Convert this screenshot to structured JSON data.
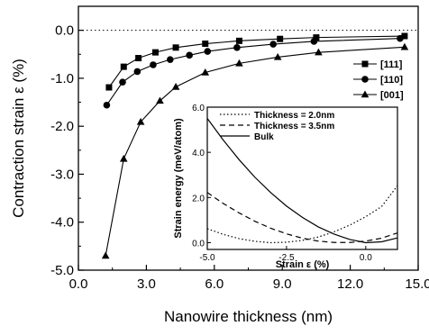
{
  "chart_data": [
    {
      "type": "line",
      "xlabel": "Nanowire thickness (nm)",
      "ylabel": "Contraction strain ε (%)",
      "xlim": [
        0.0,
        15.0
      ],
      "ylim": [
        -5.0,
        0.5
      ],
      "xticks": [
        0.0,
        3.0,
        6.0,
        9.0,
        12.0,
        15.0
      ],
      "xtick_labels": [
        "0.0",
        "3.0",
        "6.0",
        "9.0",
        "12.0",
        "15.0"
      ],
      "yticks": [
        0.0,
        -1.0,
        -2.0,
        -3.0,
        -4.0,
        -5.0
      ],
      "ytick_labels": [
        "0.0",
        "-1.0",
        "-2.0",
        "-3.0",
        "-4.0",
        "-5.0"
      ],
      "reference_line": {
        "y": 0.0,
        "style": "dotted"
      },
      "legend_position": "top-right",
      "series": [
        {
          "name": "[111]",
          "marker": "square",
          "x": [
            1.35,
            2.0,
            2.65,
            3.4,
            4.3,
            5.6,
            7.1,
            8.9,
            10.5,
            14.4
          ],
          "y": [
            -1.19,
            -0.76,
            -0.58,
            -0.46,
            -0.36,
            -0.28,
            -0.22,
            -0.18,
            -0.15,
            -0.12
          ]
        },
        {
          "name": "[110]",
          "marker": "circle",
          "x": [
            1.25,
            1.95,
            2.6,
            3.3,
            4.05,
            4.9,
            5.7,
            7.0,
            8.6,
            10.4,
            14.2
          ],
          "y": [
            -1.56,
            -1.08,
            -0.86,
            -0.72,
            -0.61,
            -0.52,
            -0.44,
            -0.36,
            -0.29,
            -0.23,
            -0.17
          ]
        },
        {
          "name": "[001]",
          "marker": "triangle",
          "x": [
            1.2,
            2.0,
            2.75,
            3.6,
            4.3,
            5.6,
            7.1,
            8.8,
            10.6,
            14.4
          ],
          "y": [
            -4.7,
            -2.68,
            -1.91,
            -1.47,
            -1.18,
            -0.88,
            -0.69,
            -0.56,
            -0.46,
            -0.35
          ]
        }
      ]
    },
    {
      "type": "line",
      "inset": true,
      "xlabel": "Strain ε (%)",
      "ylabel": "Strain energy (meV/atom)",
      "xlim": [
        -5.0,
        1.0
      ],
      "ylim": [
        -0.3,
        6.0
      ],
      "xticks": [
        -5.0,
        -2.5,
        0.0
      ],
      "xtick_labels": [
        "-5.0",
        "-2.5",
        "0.0"
      ],
      "yticks": [
        0.0,
        2.0,
        4.0,
        6.0
      ],
      "ytick_labels": [
        "0.0",
        "2.0",
        "4.0",
        "6.0"
      ],
      "legend_position": "top",
      "series": [
        {
          "name": "Thickness = 2.0nm",
          "style": "dotted",
          "x": [
            -5.0,
            -4.5,
            -4.0,
            -3.5,
            -3.0,
            -2.5,
            -2.0,
            -1.5,
            -1.0,
            -0.5,
            0.0,
            0.5,
            1.0
          ],
          "y": [
            0.62,
            0.37,
            0.18,
            0.06,
            0.0,
            0.02,
            0.1,
            0.25,
            0.48,
            0.78,
            1.15,
            1.6,
            2.52
          ]
        },
        {
          "name": "Thickness = 3.5nm",
          "style": "dashed",
          "x": [
            -5.0,
            -4.5,
            -4.0,
            -3.5,
            -3.0,
            -2.5,
            -2.0,
            -1.5,
            -1.0,
            -0.5,
            0.0,
            0.5,
            1.0
          ],
          "y": [
            2.22,
            1.74,
            1.32,
            0.95,
            0.64,
            0.39,
            0.2,
            0.07,
            0.01,
            0.01,
            0.07,
            0.2,
            0.43
          ]
        },
        {
          "name": "Bulk",
          "style": "solid",
          "x": [
            -5.0,
            -4.5,
            -4.0,
            -3.5,
            -3.0,
            -2.5,
            -2.0,
            -1.5,
            -1.0,
            -0.5,
            0.0,
            0.5,
            1.0
          ],
          "y": [
            5.5,
            4.55,
            3.68,
            2.9,
            2.22,
            1.62,
            1.12,
            0.7,
            0.38,
            0.14,
            0.0,
            0.04,
            0.21
          ]
        }
      ]
    }
  ]
}
